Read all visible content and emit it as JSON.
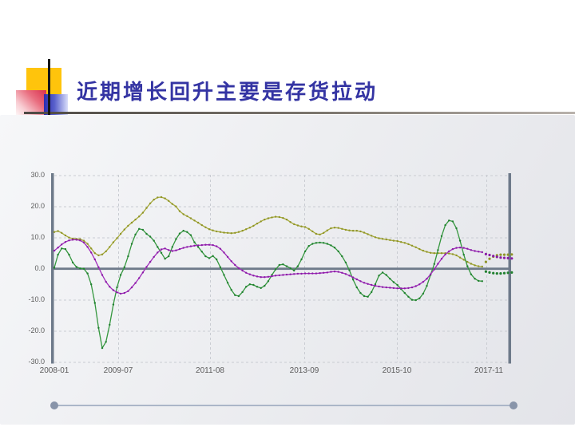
{
  "header": {
    "title": "近期增长回升主要是存货拉动"
  },
  "theme": {
    "title_color": "#3434a3",
    "accent_yellow": "#ffc40c",
    "accent_red": "#d9304e",
    "accent_blue": "#2b2cb0",
    "axis_color": "#6e7a8a",
    "grid_color": "#c9ccd2",
    "slider_color": "#8894a9"
  },
  "chart_data": {
    "type": "line",
    "start_month": "2008-01",
    "x_tick_labels": [
      "2008-01",
      "2009-07",
      "2011-08",
      "2013-09",
      "2015-10",
      "2017-11"
    ],
    "x_tick_month_index": [
      0,
      18,
      43,
      68,
      93,
      118
    ],
    "y_tick_labels": [
      "30.0",
      "20.0",
      "10.0",
      "0.0",
      "-10.0",
      "-20.0",
      "-30.0"
    ],
    "ylim": [
      -30,
      30
    ],
    "grid": "dashed",
    "legend": "none",
    "forecast_start_month_index": 117,
    "series": [
      {
        "id": "olive",
        "line_color": "#a6aa38",
        "dot_color": "#8f9428",
        "values": [
          11.8,
          12.1,
          11.5,
          10.7,
          10.0,
          9.7,
          9.6,
          9.5,
          9.0,
          8.0,
          6.5,
          5.0,
          4.3,
          4.6,
          5.6,
          7.0,
          8.5,
          9.8,
          11.2,
          12.6,
          13.8,
          14.8,
          15.8,
          16.8,
          18.0,
          19.5,
          21.0,
          22.2,
          22.9,
          23.0,
          22.6,
          21.8,
          20.8,
          20.0,
          18.5,
          17.5,
          16.9,
          16.2,
          15.5,
          14.8,
          14.0,
          13.3,
          12.7,
          12.3,
          12.0,
          11.8,
          11.6,
          11.5,
          11.4,
          11.5,
          11.8,
          12.2,
          12.7,
          13.2,
          13.8,
          14.5,
          15.2,
          15.8,
          16.2,
          16.5,
          16.7,
          16.6,
          16.3,
          15.8,
          15.0,
          14.3,
          13.9,
          13.6,
          13.4,
          12.8,
          12.0,
          11.2,
          11.0,
          11.5,
          12.3,
          13.0,
          13.2,
          13.1,
          12.8,
          12.5,
          12.3,
          12.2,
          12.2,
          12.0,
          11.6,
          11.1,
          10.6,
          10.1,
          9.8,
          9.6,
          9.4,
          9.2,
          9.0,
          8.9,
          8.6,
          8.3,
          7.9,
          7.4,
          6.9,
          6.3,
          5.8,
          5.4,
          5.1,
          5.0,
          5.0,
          5.0,
          5.0,
          4.9,
          4.7,
          4.3,
          3.6,
          2.9,
          2.2,
          1.6,
          1.1,
          0.8,
          0.7
        ],
        "forecast": [
          2.2,
          3.2,
          3.9,
          4.3,
          4.5,
          4.5,
          4.5,
          4.6
        ]
      },
      {
        "id": "green",
        "line_color": "#34973e",
        "dot_color": "#20802f",
        "values": [
          0.3,
          4.5,
          6.5,
          6.3,
          4.5,
          2.0,
          0.6,
          0.1,
          0.0,
          -1.5,
          -5.0,
          -11.0,
          -19.0,
          -25.5,
          -23.5,
          -18.0,
          -11.5,
          -6.0,
          -2.0,
          0.5,
          4.0,
          8.0,
          11.0,
          12.8,
          12.5,
          11.2,
          10.3,
          9.0,
          7.0,
          5.1,
          3.2,
          4.0,
          7.0,
          9.5,
          11.3,
          12.2,
          11.8,
          10.8,
          8.5,
          7.0,
          5.5,
          4.0,
          3.4,
          4.1,
          3.0,
          0.5,
          -2.0,
          -4.5,
          -6.8,
          -8.5,
          -8.8,
          -7.5,
          -5.8,
          -5.0,
          -5.2,
          -5.8,
          -6.2,
          -5.5,
          -4.0,
          -2.0,
          -0.2,
          1.2,
          1.4,
          0.8,
          0.2,
          -0.6,
          0.8,
          3.0,
          5.6,
          7.3,
          8.0,
          8.3,
          8.4,
          8.3,
          8.0,
          7.5,
          6.8,
          5.6,
          4.0,
          2.0,
          -0.5,
          -3.5,
          -6.0,
          -7.8,
          -8.8,
          -9.0,
          -7.5,
          -5.0,
          -2.2,
          -1.2,
          -2.0,
          -3.2,
          -4.3,
          -5.2,
          -6.5,
          -7.8,
          -9.0,
          -10.0,
          -10.1,
          -9.5,
          -8.0,
          -5.5,
          -2.0,
          1.5,
          6.0,
          10.5,
          14.0,
          15.5,
          15.2,
          13.0,
          9.0,
          4.5,
          0.8,
          -1.8,
          -3.2,
          -3.9,
          -4.0
        ],
        "forecast": [
          -0.9,
          -1.2,
          -1.4,
          -1.5,
          -1.5,
          -1.4,
          -1.3,
          -1.2
        ]
      },
      {
        "id": "purple",
        "line_color": "#a12cbb",
        "dot_color": "#8a1ca6",
        "values": [
          5.8,
          6.8,
          7.8,
          8.6,
          9.1,
          9.3,
          9.3,
          9.1,
          8.4,
          7.0,
          5.2,
          3.0,
          0.5,
          -2.0,
          -4.2,
          -5.8,
          -6.9,
          -7.6,
          -8.0,
          -7.8,
          -7.2,
          -6.0,
          -4.6,
          -3.0,
          -1.2,
          0.6,
          2.2,
          3.8,
          5.2,
          6.2,
          6.5,
          6.0,
          5.7,
          5.9,
          6.3,
          6.7,
          7.0,
          7.2,
          7.4,
          7.5,
          7.6,
          7.7,
          7.7,
          7.6,
          7.2,
          6.4,
          5.2,
          3.8,
          2.4,
          1.2,
          0.2,
          -0.6,
          -1.3,
          -1.8,
          -2.2,
          -2.5,
          -2.7,
          -2.7,
          -2.6,
          -2.4,
          -2.2,
          -2.1,
          -2.0,
          -1.9,
          -1.8,
          -1.7,
          -1.6,
          -1.6,
          -1.5,
          -1.5,
          -1.5,
          -1.5,
          -1.4,
          -1.3,
          -1.2,
          -1.0,
          -0.9,
          -1.0,
          -1.3,
          -1.7,
          -2.2,
          -2.8,
          -3.4,
          -4.0,
          -4.5,
          -4.9,
          -5.2,
          -5.5,
          -5.7,
          -5.9,
          -6.0,
          -6.1,
          -6.2,
          -6.3,
          -6.3,
          -6.3,
          -6.2,
          -6.0,
          -5.6,
          -5.0,
          -4.2,
          -3.2,
          -1.8,
          -0.2,
          1.6,
          3.2,
          4.6,
          5.6,
          6.3,
          6.7,
          6.8,
          6.7,
          6.4,
          6.0,
          5.7,
          5.5,
          5.3
        ],
        "forecast": [
          4.7,
          4.4,
          4.1,
          3.8,
          3.6,
          3.5,
          3.4,
          3.3
        ]
      }
    ]
  }
}
